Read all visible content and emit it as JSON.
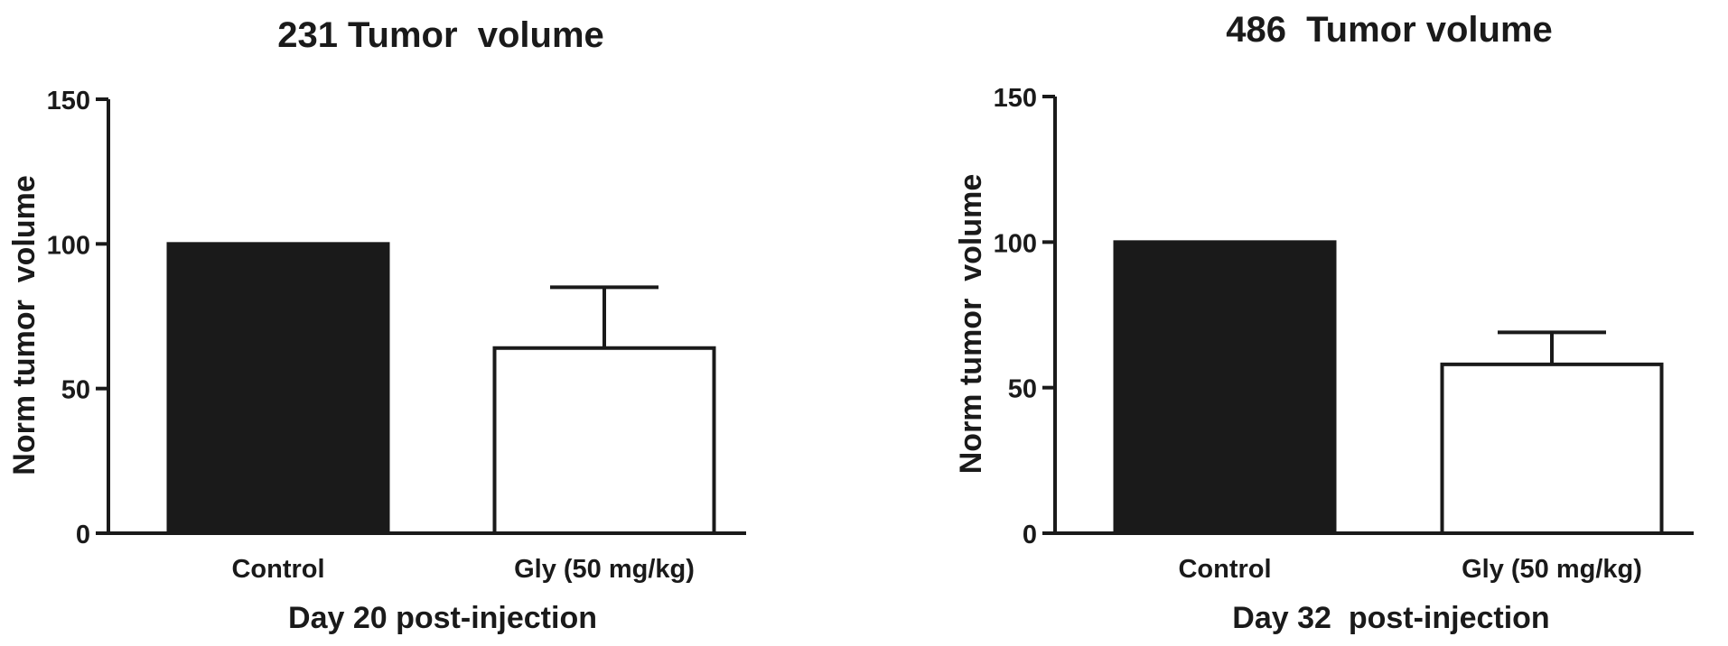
{
  "chart_data": [
    {
      "type": "bar",
      "title": "231 Tumor  volume",
      "xlabel": "Day 20 post-injection",
      "ylabel": "Norm tumor  volume",
      "ylim": [
        0,
        150
      ],
      "yticks": [
        0,
        50,
        100,
        150
      ],
      "categories": [
        "Control",
        "Gly (50 mg/kg)"
      ],
      "values": [
        100,
        64
      ],
      "error_upper": [
        null,
        85
      ],
      "bar_colors": [
        "#1a1a1a",
        "#ffffff"
      ],
      "grid": false
    },
    {
      "type": "bar",
      "title": "486  Tumor volume",
      "xlabel": "Day 32  post-injection",
      "ylabel": "Norm tumor  volume",
      "ylim": [
        0,
        150
      ],
      "yticks": [
        0,
        50,
        100,
        150
      ],
      "categories": [
        "Control",
        "Gly (50 mg/kg)"
      ],
      "values": [
        100,
        58
      ],
      "error_upper": [
        null,
        69
      ],
      "bar_colors": [
        "#1a1a1a",
        "#ffffff"
      ],
      "grid": false
    }
  ],
  "colors": {
    "ink": "#1a1a1a",
    "background": "#ffffff"
  }
}
